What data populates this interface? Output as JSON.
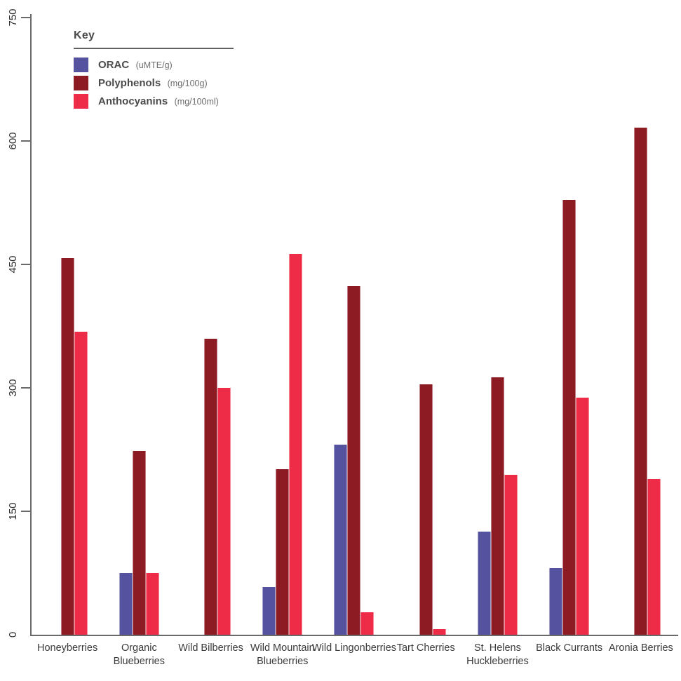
{
  "legend": {
    "title": "Key"
  },
  "colors": {
    "orac": "#5552a0",
    "polyphenols": "#8c1b23",
    "anthocyanins": "#ee2c48",
    "axis": "#6a6a6a",
    "text": "#3a3a3a"
  },
  "chart_data": {
    "type": "bar",
    "title": "",
    "legend_title": "Key",
    "legend_position": "top-left",
    "grid": false,
    "categories": [
      "Honeyberries",
      "Organic Blueberries",
      "Wild Bilberries",
      "Wild Mountain Blueberries",
      "Wild Lingonberries",
      "Tart Cherries",
      "St. Helens Huckleberries",
      "Black Currants",
      "Aronia Berries"
    ],
    "series": [
      {
        "name": "ORAC",
        "unit": "(uMTE/g)",
        "color": "#5552a0",
        "values": [
          0,
          75,
          0,
          58,
          231,
          0,
          125,
          81,
          0
        ]
      },
      {
        "name": "Polyphenols",
        "unit": "(mg/100g)",
        "color": "#8c1b23",
        "values": [
          458,
          223,
          360,
          201,
          424,
          304,
          313,
          528,
          616
        ]
      },
      {
        "name": "Anthocyanins",
        "unit": "(mg/100ml)",
        "color": "#ee2c48",
        "values": [
          368,
          75,
          300,
          463,
          27,
          7,
          194,
          288,
          189
        ]
      }
    ],
    "ylim": [
      0,
      750
    ],
    "yticks": [
      0,
      150,
      300,
      450,
      600,
      750
    ],
    "xlabel": "",
    "ylabel": ""
  }
}
